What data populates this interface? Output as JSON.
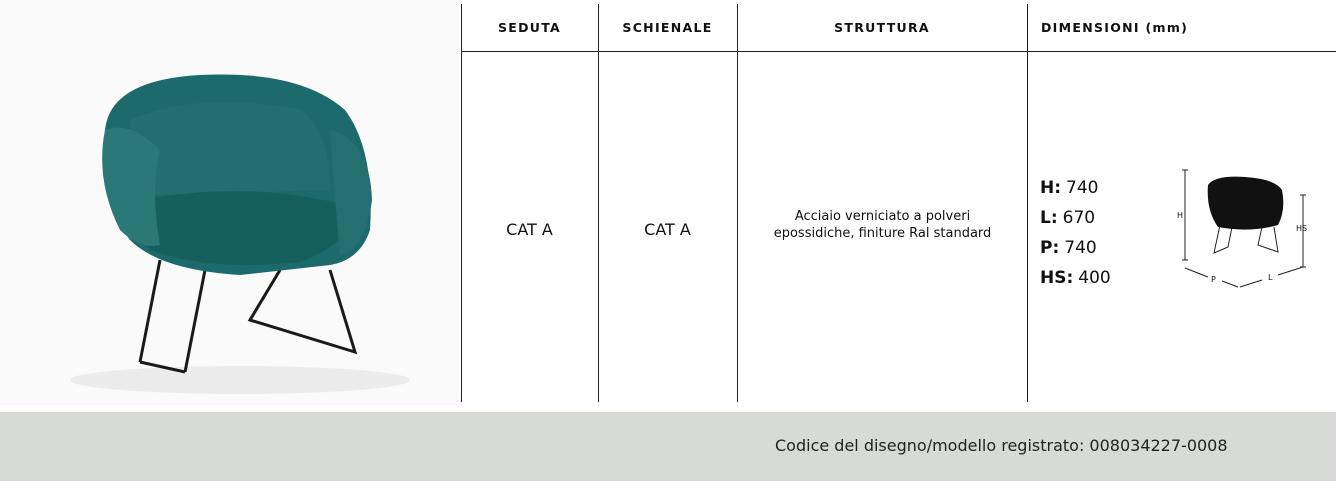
{
  "table": {
    "headers": [
      "SEDUTA",
      "SCHIENALE",
      "STRUTTURA",
      "DIMENSIONI (mm)"
    ],
    "row": {
      "seduta": "CAT A",
      "schienale": "CAT A",
      "struttura": [
        "Acciaio verniciato a polveri",
        "epossidiche, finiture Ral standard"
      ],
      "dimensioni": [
        {
          "label": "H:",
          "value": "740"
        },
        {
          "label": "L:",
          "value": "670"
        },
        {
          "label": "P:",
          "value": "740"
        },
        {
          "label": "HS:",
          "value": "400"
        }
      ],
      "diagram_labels": [
        "H",
        "HS",
        "P",
        "L"
      ]
    }
  },
  "footer": {
    "text": "Codice del disegno/modello registrato: 008034227-0008"
  }
}
